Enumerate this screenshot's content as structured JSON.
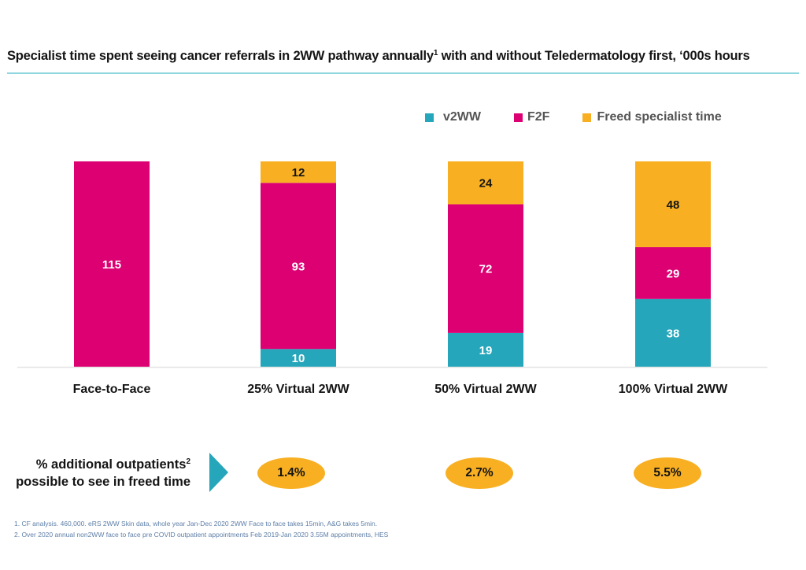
{
  "title": {
    "text_before_sup": "Specialist time spent seeing cancer referrals in 2WW pathway annually",
    "sup": "1",
    "text_after_sup": " with and without Teledermatology first, ‘000s hours"
  },
  "colors": {
    "v2WW": "#26A6BA",
    "F2F": "#DC0073",
    "Freed specialist time": "#F8B022",
    "title_rule": "#8FD6DF",
    "arrow": "#26A6BA",
    "oval": "#F8B022",
    "footnote_text": "#5E7FA8"
  },
  "legend": [
    {
      "name": "v2WW",
      "icon": "square-swatch-teal"
    },
    {
      "name": "F2F",
      "icon": "square-swatch-magenta"
    },
    {
      "name": "Freed specialist time",
      "icon": "square-swatch-orange"
    }
  ],
  "chart_data": {
    "type": "bar",
    "stacked": true,
    "title": "Specialist time spent seeing cancer referrals in 2WW pathway annually with and without Teledermatology first, ‘000s hours",
    "xlabel": "",
    "ylabel": "",
    "ylim": [
      0,
      115
    ],
    "grid": false,
    "legend_position": "top-right",
    "categories": [
      "Face-to-Face",
      "25% Virtual 2WW",
      "50% Virtual 2WW",
      "100% Virtual 2WW"
    ],
    "series": [
      {
        "name": "v2WW",
        "values": [
          0,
          10,
          19,
          38
        ]
      },
      {
        "name": "F2F",
        "values": [
          115,
          93,
          72,
          29
        ]
      },
      {
        "name": "Freed specialist time",
        "values": [
          0,
          12,
          24,
          48
        ]
      }
    ],
    "data_labels": true
  },
  "impact": {
    "label_line1": "% additional outpatients",
    "label_sup": "2",
    "label_line2": "possible to see in freed time",
    "arrow_icon": "triangle-right-icon",
    "values": [
      "1.4%",
      "2.7%",
      "5.5%"
    ]
  },
  "footnotes": [
    "1. CF analysis. 460,000. eRS  2WW Skin data, whole year Jan-Dec 2020 2WW Face to face takes 15min, A&G takes 5min.",
    "2. Over 2020 annual non2WW face to face pre COVID outpatient appointments Feb 2019-Jan 2020 3.55M appointments, HES"
  ]
}
